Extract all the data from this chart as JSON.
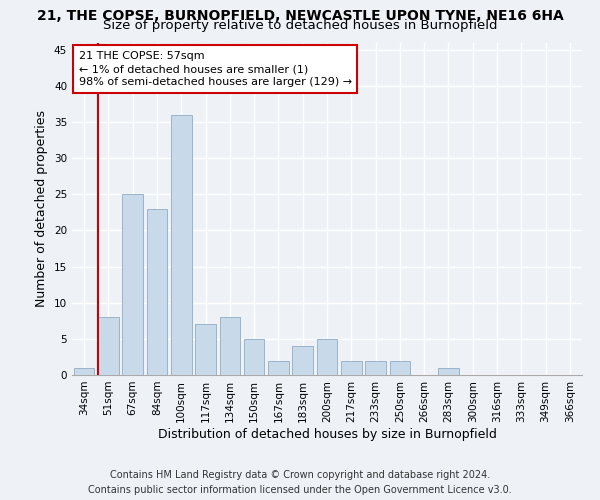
{
  "title": "21, THE COPSE, BURNOPFIELD, NEWCASTLE UPON TYNE, NE16 6HA",
  "subtitle": "Size of property relative to detached houses in Burnopfield",
  "xlabel": "Distribution of detached houses by size in Burnopfield",
  "ylabel": "Number of detached properties",
  "categories": [
    "34sqm",
    "51sqm",
    "67sqm",
    "84sqm",
    "100sqm",
    "117sqm",
    "134sqm",
    "150sqm",
    "167sqm",
    "183sqm",
    "200sqm",
    "217sqm",
    "233sqm",
    "250sqm",
    "266sqm",
    "283sqm",
    "300sqm",
    "316sqm",
    "333sqm",
    "349sqm",
    "366sqm"
  ],
  "values": [
    1,
    8,
    25,
    23,
    36,
    7,
    8,
    5,
    2,
    4,
    5,
    2,
    2,
    2,
    0,
    1,
    0,
    0,
    0,
    0,
    0
  ],
  "bar_color": "#c8d9ea",
  "bar_edge_color": "#9ab4cc",
  "redline_index": 1,
  "annotation_line1": "21 THE COPSE: 57sqm",
  "annotation_line2": "← 1% of detached houses are smaller (1)",
  "annotation_line3": "98% of semi-detached houses are larger (129) →",
  "annotation_box_color": "#ffffff",
  "annotation_box_edge": "#cc0000",
  "redline_color": "#cc0000",
  "ylim": [
    0,
    46
  ],
  "yticks": [
    0,
    5,
    10,
    15,
    20,
    25,
    30,
    35,
    40,
    45
  ],
  "footer1": "Contains HM Land Registry data © Crown copyright and database right 2024.",
  "footer2": "Contains public sector information licensed under the Open Government Licence v3.0.",
  "background_color": "#eef2f7",
  "grid_color": "#ffffff",
  "title_fontsize": 10,
  "subtitle_fontsize": 9.5,
  "axis_label_fontsize": 9,
  "tick_fontsize": 7.5,
  "annotation_fontsize": 8,
  "footer_fontsize": 7
}
